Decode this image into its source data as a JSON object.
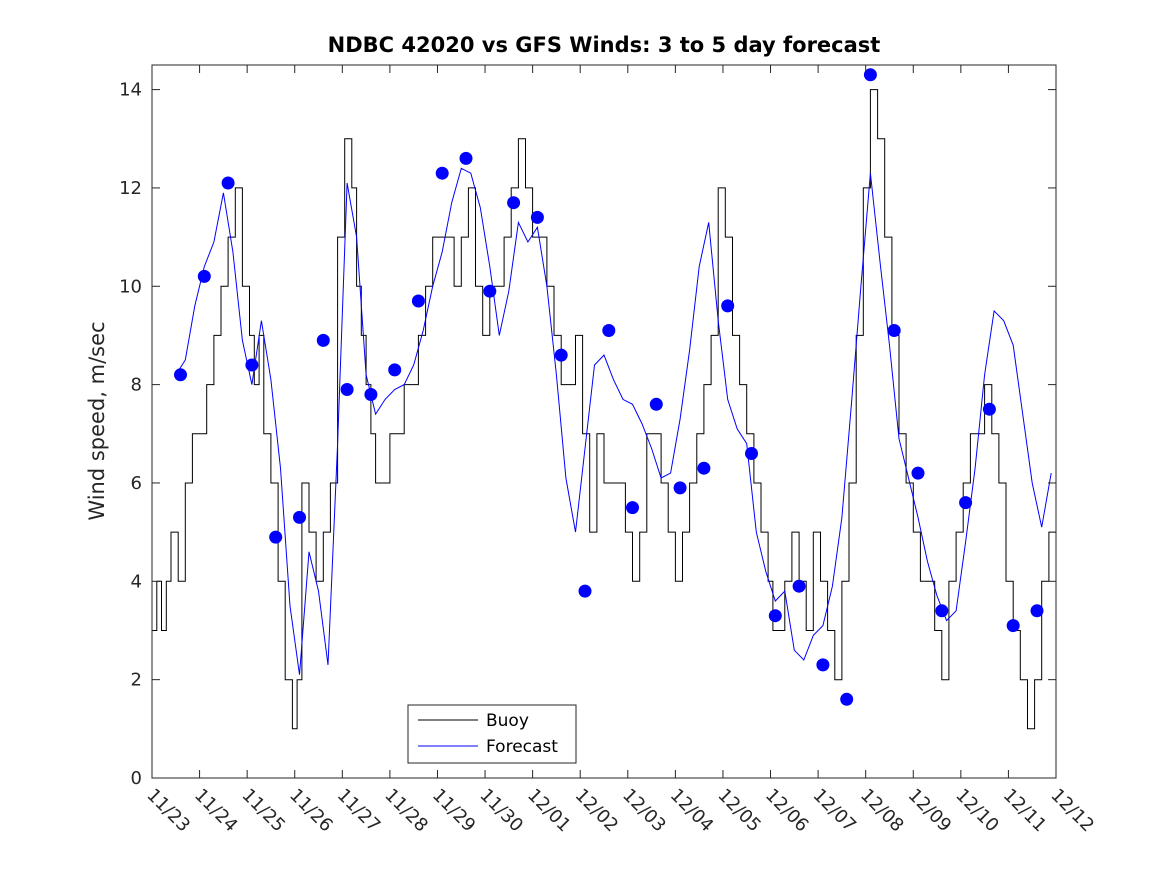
{
  "chart_data": {
    "type": "line",
    "title": "NDBC 42020 vs GFS Winds: 3 to 5 day forecast",
    "xlabel": "",
    "ylabel": "Wind speed, m/sec",
    "xlim": [
      0,
      19
    ],
    "ylim": [
      0,
      14.5
    ],
    "x_tick_labels": [
      "11/23",
      "11/24",
      "11/25",
      "11/26",
      "11/27",
      "11/28",
      "11/29",
      "11/30",
      "12/01",
      "12/02",
      "12/03",
      "12/04",
      "12/05",
      "12/06",
      "12/07",
      "12/08",
      "12/09",
      "12/10",
      "12/11",
      "12/12"
    ],
    "y_ticks": [
      0,
      2,
      4,
      6,
      8,
      10,
      12,
      14
    ],
    "legend": {
      "position": "bottom-center",
      "entries": [
        "Buoy",
        "Forecast"
      ]
    },
    "colors": {
      "buoy": "#000000",
      "forecast": "#0000ff",
      "points": "#0000ff"
    },
    "series": [
      {
        "name": "Buoy",
        "x": [
          0.0,
          0.1,
          0.2,
          0.3,
          0.4,
          0.55,
          0.7,
          0.85,
          1.0,
          1.15,
          1.3,
          1.45,
          1.6,
          1.75,
          1.9,
          2.05,
          2.15,
          2.25,
          2.35,
          2.5,
          2.65,
          2.8,
          2.95,
          3.05,
          3.15,
          3.3,
          3.45,
          3.6,
          3.75,
          3.9,
          4.05,
          4.2,
          4.3,
          4.4,
          4.5,
          4.6,
          4.7,
          4.85,
          5.0,
          5.15,
          5.3,
          5.45,
          5.6,
          5.75,
          5.9,
          6.05,
          6.2,
          6.35,
          6.5,
          6.65,
          6.8,
          6.95,
          7.1,
          7.25,
          7.4,
          7.55,
          7.7,
          7.85,
          8.0,
          8.15,
          8.3,
          8.45,
          8.6,
          8.75,
          8.9,
          9.05,
          9.2,
          9.35,
          9.5,
          9.65,
          9.8,
          9.95,
          10.1,
          10.25,
          10.4,
          10.55,
          10.7,
          10.85,
          11.0,
          11.15,
          11.3,
          11.45,
          11.6,
          11.75,
          11.9,
          12.05,
          12.2,
          12.35,
          12.5,
          12.65,
          12.8,
          12.95,
          13.05,
          13.15,
          13.3,
          13.45,
          13.6,
          13.75,
          13.9,
          14.05,
          14.2,
          14.35,
          14.5,
          14.65,
          14.8,
          14.95,
          15.1,
          15.25,
          15.4,
          15.55,
          15.7,
          15.85,
          16.0,
          16.15,
          16.3,
          16.45,
          16.6,
          16.75,
          16.9,
          17.05,
          17.2,
          17.35,
          17.5,
          17.65,
          17.8,
          17.95,
          18.1,
          18.25,
          18.4,
          18.55,
          18.7,
          18.85,
          19.0
        ],
        "values": [
          3,
          4,
          3,
          4,
          5,
          4,
          6,
          7,
          7,
          8,
          9,
          10,
          11,
          12,
          10,
          9,
          8,
          9,
          7,
          6,
          4,
          2,
          1,
          2,
          6,
          5,
          4,
          5,
          6,
          11,
          13,
          12,
          10,
          9,
          8,
          7,
          6,
          6,
          7,
          7,
          8,
          8,
          9,
          10,
          11,
          11,
          11,
          10,
          11,
          12,
          10,
          9,
          10,
          10,
          11,
          12,
          13,
          12,
          11,
          11,
          10,
          9,
          8,
          8,
          9,
          7,
          5,
          7,
          6,
          6,
          6,
          5,
          4,
          5,
          7,
          7,
          6,
          5,
          4,
          5,
          6,
          7,
          8,
          9,
          12,
          11,
          9,
          8,
          7,
          6,
          5,
          4,
          3,
          3,
          4,
          5,
          4,
          3,
          5,
          4,
          3,
          2,
          4,
          6,
          9,
          12,
          14,
          13,
          11,
          9,
          7,
          6,
          5,
          4,
          4,
          3,
          2,
          4,
          5,
          6,
          7,
          7,
          8,
          7,
          6,
          4,
          3,
          2,
          1,
          2,
          4,
          5,
          6
        ]
      },
      {
        "name": "Forecast",
        "x": [
          0.5,
          0.7,
          0.9,
          1.1,
          1.3,
          1.5,
          1.7,
          1.9,
          2.1,
          2.3,
          2.5,
          2.7,
          2.9,
          3.1,
          3.3,
          3.5,
          3.7,
          3.9,
          4.1,
          4.3,
          4.5,
          4.7,
          4.9,
          5.1,
          5.3,
          5.5,
          5.7,
          5.9,
          6.1,
          6.3,
          6.5,
          6.7,
          6.9,
          7.1,
          7.3,
          7.5,
          7.7,
          7.9,
          8.1,
          8.3,
          8.5,
          8.7,
          8.9,
          9.1,
          9.3,
          9.5,
          9.7,
          9.9,
          10.1,
          10.3,
          10.5,
          10.7,
          10.9,
          11.1,
          11.3,
          11.5,
          11.7,
          11.9,
          12.1,
          12.3,
          12.5,
          12.7,
          12.9,
          13.1,
          13.3,
          13.5,
          13.7,
          13.9,
          14.1,
          14.3,
          14.5,
          14.7,
          14.9,
          15.1,
          15.3,
          15.5,
          15.7,
          15.9,
          16.1,
          16.3,
          16.5,
          16.7,
          16.9,
          17.1,
          17.3,
          17.5,
          17.7,
          17.9,
          18.1,
          18.3,
          18.5,
          18.7,
          18.9
        ],
        "values": [
          8.2,
          8.5,
          9.6,
          10.4,
          10.9,
          11.9,
          10.7,
          8.9,
          8.0,
          9.3,
          8.1,
          6.3,
          3.5,
          2.1,
          4.6,
          3.8,
          2.3,
          6.8,
          12.1,
          11.0,
          8.2,
          7.4,
          7.7,
          7.9,
          8.0,
          8.4,
          9.1,
          10.0,
          10.7,
          11.7,
          12.4,
          12.3,
          11.6,
          10.4,
          9.0,
          9.9,
          11.3,
          10.9,
          11.2,
          10.0,
          8.2,
          6.1,
          5.0,
          6.7,
          8.4,
          8.6,
          8.1,
          7.7,
          7.6,
          7.2,
          6.7,
          6.1,
          6.2,
          7.3,
          8.7,
          10.4,
          11.3,
          9.3,
          7.7,
          7.1,
          6.8,
          5.0,
          4.2,
          3.6,
          3.8,
          2.6,
          2.4,
          2.9,
          3.1,
          3.9,
          5.3,
          7.6,
          10.0,
          12.3,
          10.5,
          8.8,
          6.9,
          6.1,
          5.3,
          4.4,
          3.7,
          3.2,
          3.4,
          4.8,
          6.3,
          8.2,
          9.5,
          9.3,
          8.8,
          7.4,
          6.0,
          5.1,
          6.2
        ]
      }
    ],
    "points": {
      "x": [
        0.6,
        1.1,
        1.6,
        2.1,
        2.6,
        3.1,
        3.6,
        4.1,
        4.6,
        5.1,
        5.6,
        6.1,
        6.6,
        7.1,
        7.6,
        8.1,
        8.6,
        9.1,
        9.6,
        10.1,
        10.6,
        11.1,
        11.6,
        12.1,
        12.6,
        13.1,
        13.6,
        14.1,
        14.6,
        15.1,
        15.6,
        16.1,
        16.6,
        17.1,
        17.6,
        18.1,
        18.6
      ],
      "values": [
        8.2,
        10.2,
        12.1,
        8.4,
        4.9,
        5.3,
        8.9,
        7.9,
        7.8,
        8.3,
        9.7,
        12.3,
        12.6,
        9.9,
        11.7,
        11.4,
        8.6,
        3.8,
        9.1,
        5.5,
        7.6,
        5.9,
        6.3,
        9.6,
        6.6,
        3.3,
        3.9,
        2.3,
        1.6,
        14.3,
        9.1,
        6.2,
        3.4,
        5.6,
        7.5,
        3.1,
        3.4
      ]
    }
  }
}
